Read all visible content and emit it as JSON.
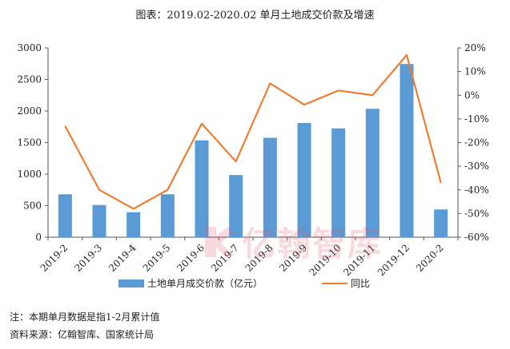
{
  "colors": {
    "bar": "#5B9BD5",
    "line": "#ED7D31",
    "axis": "#555555",
    "watermark": "#e05a6d"
  },
  "watermark_text": "亿翰智库",
  "notes": {
    "line1": "注：本期单月数据是指1-2月累计值",
    "line2": "资料来源：亿翰智库、国家统计局"
  },
  "chart_data": {
    "type": "bar+line",
    "title": "图表：2019.02-2020.02 单月土地成交价款及增速",
    "categories": [
      "2019-2",
      "2019-3",
      "2019-4",
      "2019-5",
      "2019-6",
      "2019-7",
      "2019-8",
      "2019-9",
      "2019-10",
      "2019-11",
      "2019-12",
      "2020-2"
    ],
    "series": [
      {
        "name": "土地单月成交价款（亿元）",
        "type": "bar",
        "axis": "left",
        "values": [
          680,
          510,
          395,
          680,
          1535,
          985,
          1575,
          1810,
          1725,
          2035,
          2745,
          440
        ]
      },
      {
        "name": "同比",
        "type": "line",
        "axis": "right",
        "values": [
          -13,
          -40,
          -48,
          -40,
          -12,
          -28,
          5,
          -4,
          2,
          0,
          17,
          -37
        ]
      }
    ],
    "y_left": {
      "min": 0,
      "max": 3000,
      "step": 500,
      "ticks": [
        "0",
        "500",
        "1000",
        "1500",
        "2000",
        "2500",
        "3000"
      ]
    },
    "y_right": {
      "min": -60,
      "max": 20,
      "step": 10,
      "ticks": [
        "-60%",
        "-50%",
        "-40%",
        "-30%",
        "-20%",
        "-10%",
        "0%",
        "10%",
        "20%"
      ]
    },
    "grid": false,
    "legend": "bottom"
  }
}
